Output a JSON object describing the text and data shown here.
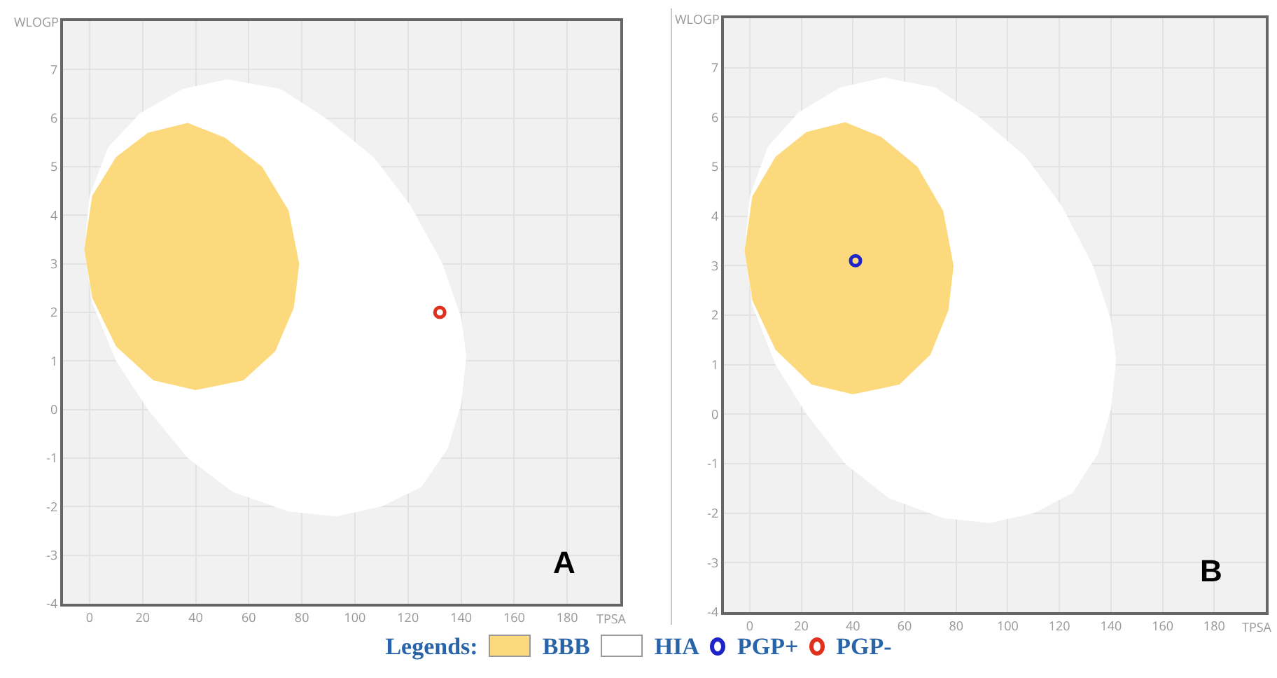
{
  "chart_data": [
    {
      "type": "scatter",
      "xlabel": "TPSA",
      "ylabel": "WLOGP",
      "xlim": [
        -10,
        200
      ],
      "ylim": [
        -4,
        8
      ],
      "xticks": [
        0,
        20,
        40,
        60,
        80,
        100,
        120,
        140,
        160,
        180
      ],
      "yticks": [
        -4,
        -3,
        -2,
        -1,
        0,
        1,
        2,
        3,
        4,
        5,
        6,
        7
      ],
      "grid": true,
      "marker": "circle",
      "legend": "bottom",
      "legend_title": "Legends:",
      "annotations": [
        "A"
      ],
      "series": [
        {
          "name": "HIA",
          "type": "area",
          "marker": "none",
          "color": "#ffffff",
          "x": [
            52,
            72,
            89,
            107,
            121,
            133,
            140,
            142,
            140,
            135,
            125,
            110,
            93,
            75,
            54,
            37,
            22,
            10,
            1,
            -2,
            0,
            7,
            19,
            35,
            52
          ],
          "values": [
            6.8,
            6.6,
            6.0,
            5.2,
            4.2,
            3.0,
            1.9,
            1.1,
            0.1,
            -0.8,
            -1.6,
            -2.0,
            -2.2,
            -2.1,
            -1.7,
            -1.0,
            0.0,
            1.0,
            2.2,
            3.3,
            4.4,
            5.4,
            6.1,
            6.6,
            6.8
          ]
        },
        {
          "name": "BBB",
          "type": "area",
          "marker": "none",
          "color": "#fbd97c",
          "x": [
            37,
            51,
            65,
            75,
            79,
            77,
            70,
            58,
            40,
            24,
            10,
            1,
            -2,
            1,
            10,
            22,
            37
          ],
          "values": [
            5.9,
            5.6,
            5.0,
            4.1,
            3.0,
            2.1,
            1.2,
            0.6,
            0.4,
            0.6,
            1.3,
            2.3,
            3.3,
            4.4,
            5.2,
            5.7,
            5.9
          ]
        },
        {
          "name": "PGP-",
          "color": "#e0301e",
          "x": [
            132
          ],
          "values": [
            2.0
          ]
        }
      ]
    },
    {
      "type": "scatter",
      "xlabel": "TPSA",
      "ylabel": "WLOGP",
      "xlim": [
        -10,
        200
      ],
      "ylim": [
        -4,
        8
      ],
      "xticks": [
        0,
        20,
        40,
        60,
        80,
        100,
        120,
        140,
        160,
        180
      ],
      "yticks": [
        -4,
        -3,
        -2,
        -1,
        0,
        1,
        2,
        3,
        4,
        5,
        6,
        7
      ],
      "grid": true,
      "marker": "circle",
      "legend": "bottom",
      "annotations": [
        "B"
      ],
      "series": [
        {
          "type": "area",
          "marker": "none",
          "color": "#ffffff",
          "x": [
            52,
            72,
            89,
            107,
            121,
            133,
            140,
            142,
            140,
            135,
            125,
            110,
            93,
            75,
            54,
            37,
            22,
            10,
            1,
            -2,
            0,
            7,
            19,
            35,
            52
          ],
          "values": [
            6.8,
            6.6,
            6.0,
            5.2,
            4.2,
            3.0,
            1.9,
            1.1,
            0.1,
            -0.8,
            -1.6,
            -2.0,
            -2.2,
            -2.1,
            -1.7,
            -1.0,
            0.0,
            1.0,
            2.2,
            3.3,
            4.4,
            5.4,
            6.1,
            6.6,
            6.8
          ]
        },
        {
          "type": "area",
          "marker": "none",
          "color": "#fbd97c",
          "x": [
            37,
            51,
            65,
            75,
            79,
            77,
            70,
            58,
            40,
            24,
            10,
            1,
            -2,
            1,
            10,
            22,
            37
          ],
          "values": [
            5.9,
            5.6,
            5.0,
            4.1,
            3.0,
            2.1,
            1.2,
            0.6,
            0.4,
            0.6,
            1.3,
            2.3,
            3.3,
            4.4,
            5.2,
            5.7,
            5.9
          ]
        },
        {
          "name": "PGP+",
          "color": "#1f24c8",
          "x": [
            41
          ],
          "values": [
            3.1
          ]
        }
      ]
    }
  ]
}
